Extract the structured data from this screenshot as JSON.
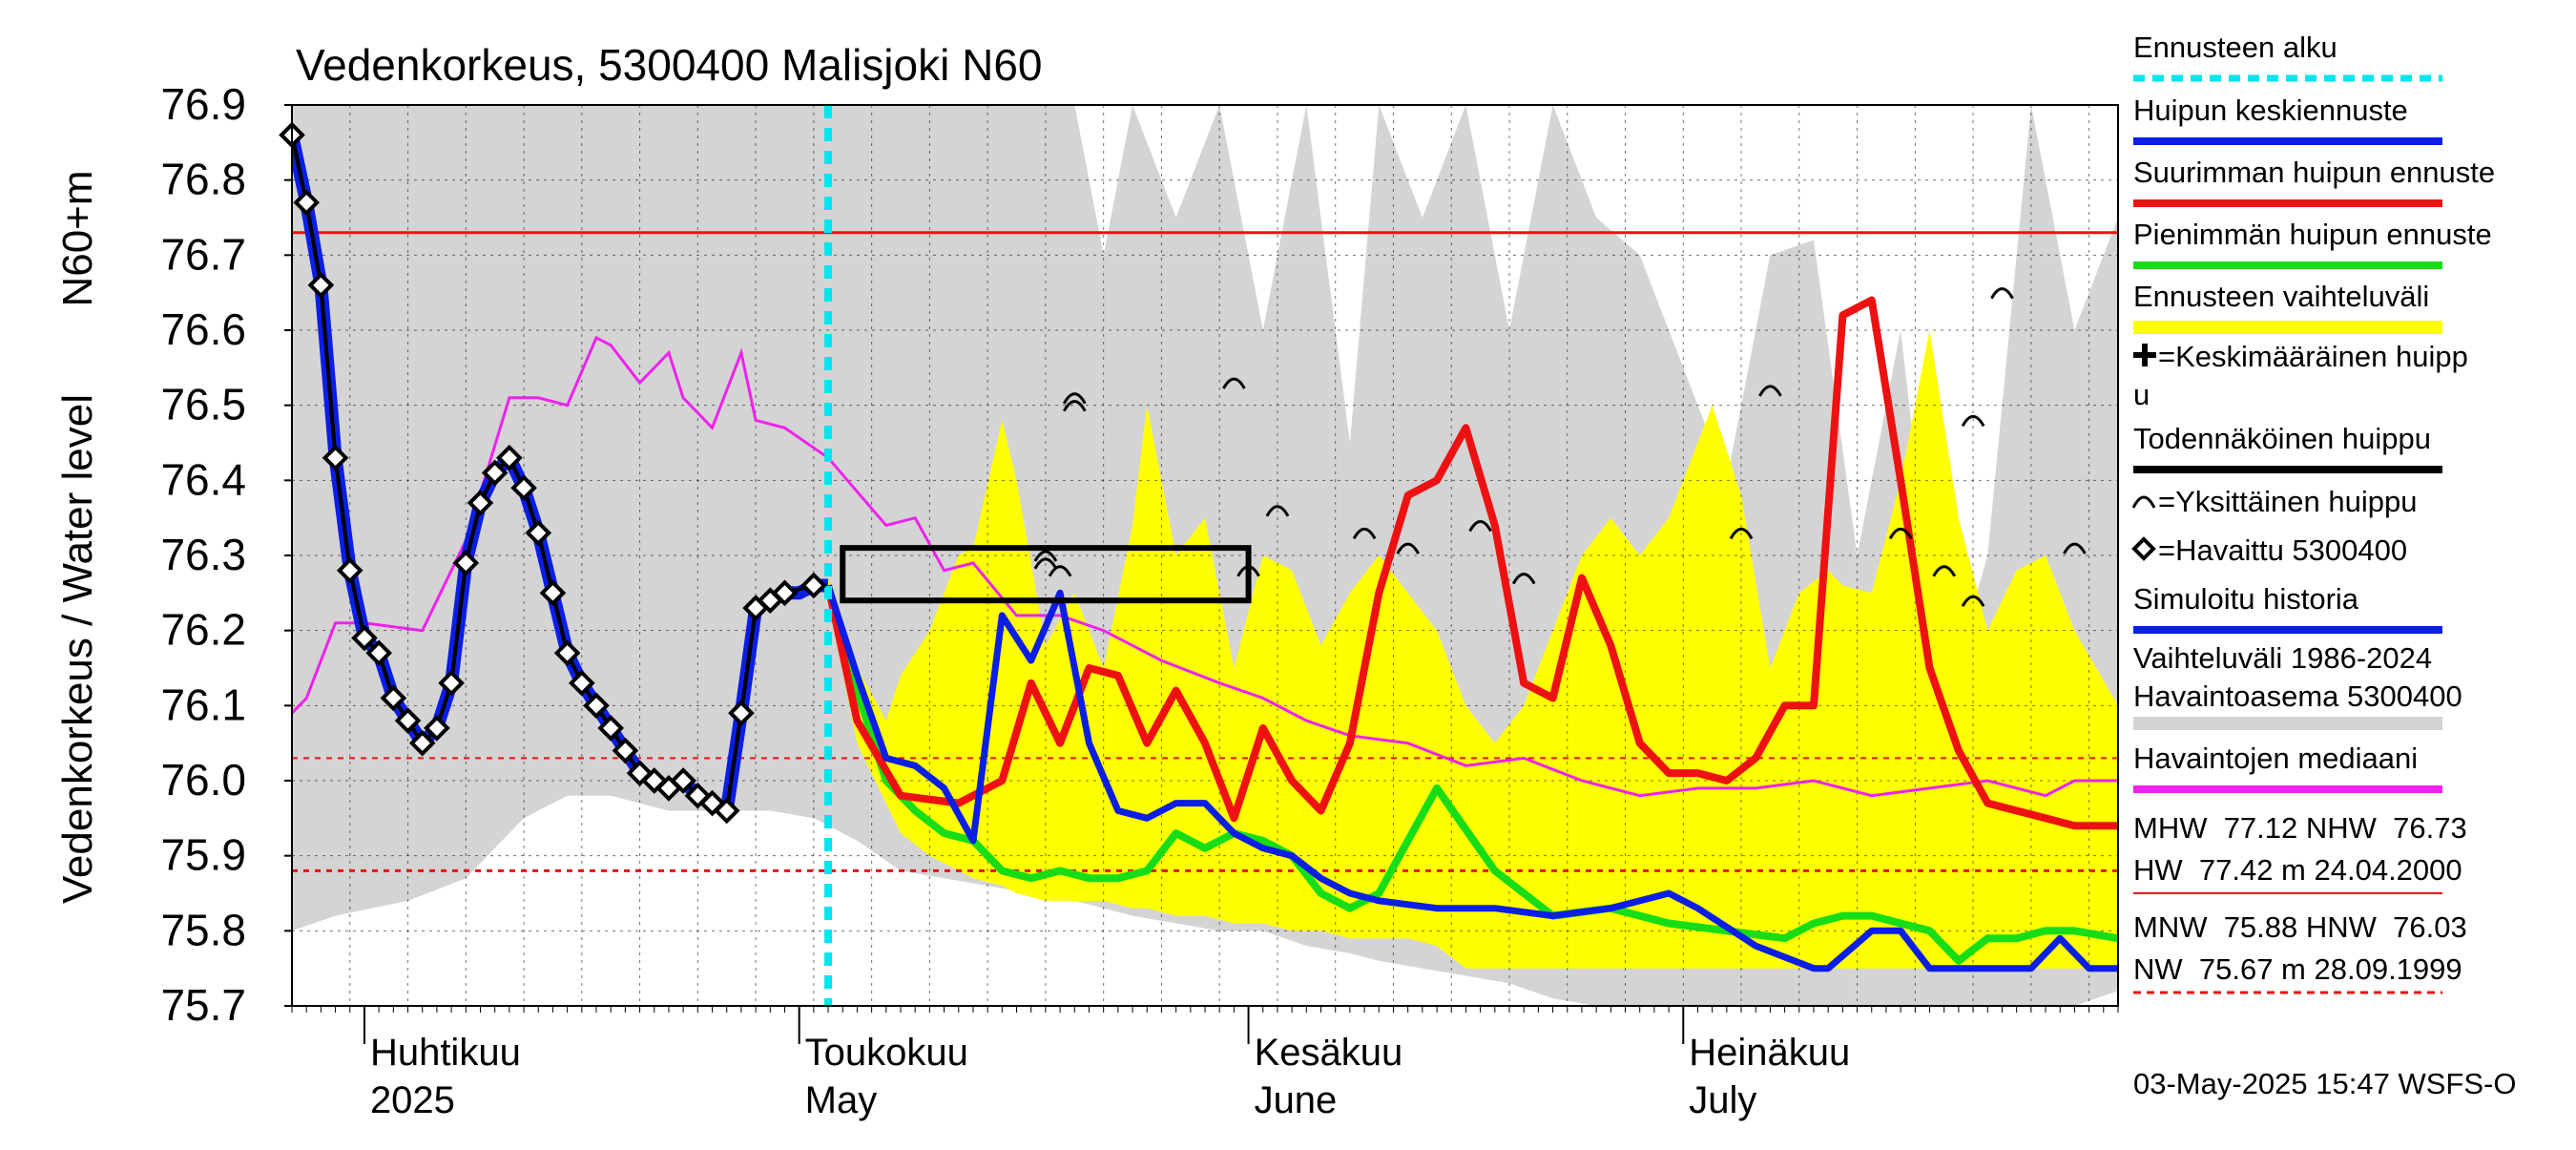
{
  "chart_data": {
    "type": "line",
    "title": "Vedenkorkeus, 5300400 Malisjoki N60",
    "ylabel": "Vedenkorkeus / Water level",
    "ylabel_unit": "N60+m",
    "ylim": [
      75.7,
      76.9
    ],
    "yticks": [
      "75.7",
      "75.8",
      "75.9",
      "76.0",
      "76.1",
      "76.2",
      "76.3",
      "76.4",
      "76.5",
      "76.6",
      "76.7",
      "76.8",
      "76.9"
    ],
    "xlim": [
      "2025-03-27",
      "2025-07-31"
    ],
    "grid": true,
    "months": [
      {
        "label": "Huhtikuu",
        "label2": "2025",
        "start": "2025-04-01"
      },
      {
        "label": "Toukokuu",
        "label2": "May",
        "start": "2025-05-01"
      },
      {
        "label": "Kesäkuu",
        "label2": "June",
        "start": "2025-06-01"
      },
      {
        "label": "Heinäkuu",
        "label2": "July",
        "start": "2025-07-01"
      }
    ],
    "forecast_start": "2025-05-03",
    "reference_lines": {
      "NHW": 76.73,
      "HNW": 76.03,
      "MNW": 75.88
    },
    "observed": {
      "name": "Havaittu 5300400",
      "x": [
        "2025-03-27",
        "2025-03-28",
        "2025-03-29",
        "2025-03-30",
        "2025-03-31",
        "2025-04-01",
        "2025-04-02",
        "2025-04-03",
        "2025-04-04",
        "2025-04-05",
        "2025-04-06",
        "2025-04-07",
        "2025-04-08",
        "2025-04-09",
        "2025-04-10",
        "2025-04-11",
        "2025-04-12",
        "2025-04-13",
        "2025-04-14",
        "2025-04-15",
        "2025-04-16",
        "2025-04-17",
        "2025-04-18",
        "2025-04-19",
        "2025-04-20",
        "2025-04-21",
        "2025-04-22",
        "2025-04-23",
        "2025-04-24",
        "2025-04-25",
        "2025-04-26",
        "2025-04-27",
        "2025-04-28",
        "2025-04-29",
        "2025-04-30",
        "2025-05-02"
      ],
      "y": [
        76.86,
        76.77,
        76.66,
        76.43,
        76.28,
        76.19,
        76.17,
        76.11,
        76.08,
        76.05,
        76.07,
        76.13,
        76.29,
        76.37,
        76.41,
        76.43,
        76.39,
        76.33,
        76.25,
        76.17,
        76.13,
        76.1,
        76.07,
        76.04,
        76.01,
        76.0,
        75.99,
        76.0,
        75.98,
        75.97,
        75.96,
        76.09,
        76.23,
        76.24,
        76.25,
        76.26
      ]
    },
    "simulated": {
      "name": "Simuloitu historia",
      "x": [
        "2025-03-27",
        "2025-03-28",
        "2025-03-29",
        "2025-03-30",
        "2025-03-31",
        "2025-04-01",
        "2025-04-02",
        "2025-04-03",
        "2025-04-04",
        "2025-04-05",
        "2025-04-06",
        "2025-04-07",
        "2025-04-08",
        "2025-04-09",
        "2025-04-10",
        "2025-04-11",
        "2025-04-12",
        "2025-04-13",
        "2025-04-14",
        "2025-04-15",
        "2025-04-16",
        "2025-04-17",
        "2025-04-18",
        "2025-04-19",
        "2025-04-20",
        "2025-04-21",
        "2025-04-22",
        "2025-04-23",
        "2025-04-24",
        "2025-04-25",
        "2025-04-26",
        "2025-04-27",
        "2025-04-28",
        "2025-04-29",
        "2025-04-30",
        "2025-05-01",
        "2025-05-02",
        "2025-05-03"
      ],
      "y": [
        76.86,
        76.77,
        76.66,
        76.43,
        76.28,
        76.19,
        76.17,
        76.11,
        76.08,
        76.05,
        76.07,
        76.13,
        76.29,
        76.37,
        76.41,
        76.43,
        76.39,
        76.33,
        76.25,
        76.17,
        76.13,
        76.1,
        76.07,
        76.04,
        76.01,
        76.0,
        75.99,
        76.0,
        75.98,
        75.97,
        75.96,
        76.09,
        76.23,
        76.24,
        76.25,
        76.25,
        76.26,
        76.26
      ]
    },
    "median": {
      "name": "Havaintojen mediaani",
      "x": [
        "2025-03-27",
        "2025-03-28",
        "2025-03-30",
        "2025-04-01",
        "2025-04-05",
        "2025-04-08",
        "2025-04-11",
        "2025-04-13",
        "2025-04-15",
        "2025-04-17",
        "2025-04-18",
        "2025-04-20",
        "2025-04-22",
        "2025-04-23",
        "2025-04-25",
        "2025-04-27",
        "2025-04-28",
        "2025-04-30",
        "2025-05-03",
        "2025-05-07",
        "2025-05-09",
        "2025-05-11",
        "2025-05-13",
        "2025-05-16",
        "2025-05-19",
        "2025-05-22",
        "2025-05-26",
        "2025-05-30",
        "2025-06-02",
        "2025-06-05",
        "2025-06-08",
        "2025-06-12",
        "2025-06-16",
        "2025-06-20",
        "2025-06-24",
        "2025-06-28",
        "2025-07-02",
        "2025-07-06",
        "2025-07-10",
        "2025-07-14",
        "2025-07-18",
        "2025-07-22",
        "2025-07-26",
        "2025-07-28",
        "2025-07-31"
      ],
      "y": [
        76.09,
        76.11,
        76.21,
        76.21,
        76.2,
        76.32,
        76.51,
        76.51,
        76.5,
        76.59,
        76.58,
        76.53,
        76.57,
        76.51,
        76.47,
        76.57,
        76.48,
        76.47,
        76.43,
        76.34,
        76.35,
        76.28,
        76.29,
        76.22,
        76.22,
        76.2,
        76.16,
        76.13,
        76.11,
        76.08,
        76.06,
        76.05,
        76.02,
        76.03,
        76.0,
        75.98,
        75.99,
        75.99,
        76.0,
        75.98,
        75.99,
        76.0,
        75.98,
        76.0,
        76.0
      ]
    },
    "forecast_mean": {
      "name": "Huipun keskiennuste",
      "x": [
        "2025-05-03",
        "2025-05-05",
        "2025-05-07",
        "2025-05-09",
        "2025-05-11",
        "2025-05-13",
        "2025-05-15",
        "2025-05-17",
        "2025-05-19",
        "2025-05-21",
        "2025-05-23",
        "2025-05-25",
        "2025-05-27",
        "2025-05-29",
        "2025-05-31",
        "2025-06-02",
        "2025-06-04",
        "2025-06-06",
        "2025-06-08",
        "2025-06-10",
        "2025-06-14",
        "2025-06-18",
        "2025-06-22",
        "2025-06-26",
        "2025-06-30",
        "2025-07-02",
        "2025-07-06",
        "2025-07-10",
        "2025-07-11",
        "2025-07-14",
        "2025-07-16",
        "2025-07-18",
        "2025-07-20",
        "2025-07-22",
        "2025-07-25",
        "2025-07-27",
        "2025-07-29",
        "2025-07-31"
      ],
      "y": [
        76.26,
        76.14,
        76.03,
        76.02,
        75.99,
        75.92,
        76.22,
        76.16,
        76.25,
        76.05,
        75.96,
        75.95,
        75.97,
        75.97,
        75.93,
        75.91,
        75.9,
        75.87,
        75.85,
        75.84,
        75.83,
        75.83,
        75.82,
        75.83,
        75.85,
        75.83,
        75.78,
        75.75,
        75.75,
        75.8,
        75.8,
        75.75,
        75.75,
        75.75,
        75.75,
        75.79,
        75.75,
        75.75
      ]
    },
    "forecast_max": {
      "name": "Suurimman huipun ennuste",
      "x": [
        "2025-05-03",
        "2025-05-05",
        "2025-05-08",
        "2025-05-12",
        "2025-05-15",
        "2025-05-17",
        "2025-05-19",
        "2025-05-21",
        "2025-05-23",
        "2025-05-25",
        "2025-05-27",
        "2025-05-29",
        "2025-05-31",
        "2025-06-02",
        "2025-06-04",
        "2025-06-06",
        "2025-06-08",
        "2025-06-10",
        "2025-06-12",
        "2025-06-14",
        "2025-06-16",
        "2025-06-18",
        "2025-06-20",
        "2025-06-22",
        "2025-06-24",
        "2025-06-26",
        "2025-06-28",
        "2025-06-30",
        "2025-07-02",
        "2025-07-04",
        "2025-07-06",
        "2025-07-08",
        "2025-07-10",
        "2025-07-12",
        "2025-07-14",
        "2025-07-16",
        "2025-07-18",
        "2025-07-20",
        "2025-07-22",
        "2025-07-24",
        "2025-07-26",
        "2025-07-28",
        "2025-07-31"
      ],
      "y": [
        76.26,
        76.08,
        75.98,
        75.97,
        76.0,
        76.13,
        76.05,
        76.15,
        76.14,
        76.05,
        76.12,
        76.05,
        75.95,
        76.07,
        76.0,
        75.96,
        76.05,
        76.25,
        76.38,
        76.4,
        76.47,
        76.34,
        76.13,
        76.11,
        76.27,
        76.18,
        76.05,
        76.01,
        76.01,
        76.0,
        76.03,
        76.1,
        76.1,
        76.62,
        76.64,
        76.4,
        76.15,
        76.04,
        75.97,
        75.96,
        75.95,
        75.94,
        75.94
      ]
    },
    "forecast_min": {
      "name": "Pienimmän huipun ennuste",
      "x": [
        "2025-05-03",
        "2025-05-05",
        "2025-05-07",
        "2025-05-09",
        "2025-05-11",
        "2025-05-13",
        "2025-05-15",
        "2025-05-17",
        "2025-05-19",
        "2025-05-21",
        "2025-05-23",
        "2025-05-25",
        "2025-05-27",
        "2025-05-29",
        "2025-05-31",
        "2025-06-02",
        "2025-06-04",
        "2025-06-06",
        "2025-06-08",
        "2025-06-10",
        "2025-06-14",
        "2025-06-18",
        "2025-06-22",
        "2025-06-26",
        "2025-06-30",
        "2025-07-04",
        "2025-07-08",
        "2025-07-10",
        "2025-07-12",
        "2025-07-14",
        "2025-07-16",
        "2025-07-18",
        "2025-07-20",
        "2025-07-22",
        "2025-07-24",
        "2025-07-26",
        "2025-07-28",
        "2025-07-31"
      ],
      "y": [
        76.26,
        76.12,
        76.0,
        75.96,
        75.93,
        75.92,
        75.88,
        75.87,
        75.88,
        75.87,
        75.87,
        75.88,
        75.93,
        75.91,
        75.93,
        75.92,
        75.9,
        75.85,
        75.83,
        75.85,
        75.99,
        75.88,
        75.82,
        75.83,
        75.81,
        75.8,
        75.79,
        75.81,
        75.82,
        75.82,
        75.81,
        75.8,
        75.76,
        75.79,
        75.79,
        75.8,
        75.8,
        75.79
      ]
    },
    "forecast_range": {
      "name": "Ennusteen vaihteluväli",
      "x": [
        "2025-05-03",
        "2025-05-05",
        "2025-05-07",
        "2025-05-08",
        "2025-05-10",
        "2025-05-12",
        "2025-05-13",
        "2025-05-15",
        "2025-05-16",
        "2025-05-18",
        "2025-05-20",
        "2025-05-22",
        "2025-05-24",
        "2025-05-25",
        "2025-05-27",
        "2025-05-29",
        "2025-05-31",
        "2025-06-02",
        "2025-06-04",
        "2025-06-06",
        "2025-06-08",
        "2025-06-10",
        "2025-06-12",
        "2025-06-14",
        "2025-06-16",
        "2025-06-18",
        "2025-06-20",
        "2025-06-22",
        "2025-06-24",
        "2025-06-26",
        "2025-06-28",
        "2025-06-30",
        "2025-07-02",
        "2025-07-03",
        "2025-07-05",
        "2025-07-07",
        "2025-07-09",
        "2025-07-11",
        "2025-07-12",
        "2025-07-14",
        "2025-07-16",
        "2025-07-18",
        "2025-07-20",
        "2025-07-22",
        "2025-07-24",
        "2025-07-26",
        "2025-07-28",
        "2025-07-31"
      ],
      "upper": [
        76.27,
        76.15,
        76.08,
        76.14,
        76.2,
        76.3,
        76.31,
        76.48,
        76.4,
        76.18,
        76.25,
        76.15,
        76.34,
        76.5,
        76.3,
        76.35,
        76.15,
        76.3,
        76.28,
        76.18,
        76.25,
        76.3,
        76.25,
        76.2,
        76.1,
        76.05,
        76.1,
        76.2,
        76.3,
        76.35,
        76.3,
        76.35,
        76.45,
        76.5,
        76.38,
        76.15,
        76.25,
        76.28,
        76.26,
        76.25,
        76.4,
        76.6,
        76.35,
        76.2,
        76.28,
        76.3,
        76.2,
        76.1
      ],
      "lower": [
        76.24,
        76.05,
        75.97,
        75.93,
        75.9,
        75.88,
        75.87,
        75.86,
        75.85,
        75.84,
        75.84,
        75.84,
        75.83,
        75.83,
        75.82,
        75.82,
        75.81,
        75.81,
        75.8,
        75.8,
        75.79,
        75.79,
        75.79,
        75.78,
        75.75,
        75.75,
        75.75,
        75.75,
        75.75,
        75.75,
        75.75,
        75.75,
        75.75,
        75.75,
        75.75,
        75.75,
        75.75,
        75.75,
        75.75,
        75.75,
        75.75,
        75.75,
        75.75,
        75.75,
        75.75,
        75.75,
        75.75,
        75.75
      ]
    },
    "historical_range": {
      "name": "Vaihteluväli 1986-2024 Havaintoasema 5300400",
      "x": [
        "2025-03-27",
        "2025-03-30",
        "2025-04-04",
        "2025-04-08",
        "2025-04-12",
        "2025-04-15",
        "2025-04-18",
        "2025-04-22",
        "2025-04-26",
        "2025-04-29",
        "2025-05-02",
        "2025-05-05",
        "2025-05-08",
        "2025-05-11",
        "2025-05-14",
        "2025-05-17",
        "2025-05-20",
        "2025-05-22",
        "2025-05-24",
        "2025-05-27",
        "2025-05-30",
        "2025-06-02",
        "2025-06-05",
        "2025-06-08",
        "2025-06-10",
        "2025-06-13",
        "2025-06-16",
        "2025-06-19",
        "2025-06-22",
        "2025-06-25",
        "2025-06-28",
        "2025-07-01",
        "2025-07-04",
        "2025-07-07",
        "2025-07-10",
        "2025-07-13",
        "2025-07-16",
        "2025-07-19",
        "2025-07-22",
        "2025-07-25",
        "2025-07-28",
        "2025-07-31"
      ],
      "upper": [
        76.9,
        76.9,
        76.9,
        76.9,
        76.9,
        76.9,
        76.9,
        76.9,
        76.9,
        76.9,
        76.9,
        76.9,
        76.9,
        76.9,
        76.9,
        76.9,
        76.9,
        76.7,
        76.9,
        76.75,
        76.9,
        76.6,
        76.9,
        76.45,
        76.9,
        76.75,
        76.9,
        76.6,
        76.9,
        76.75,
        76.7,
        76.55,
        76.4,
        76.7,
        76.72,
        76.3,
        76.6,
        76.1,
        76.3,
        76.9,
        76.6,
        76.75
      ],
      "lower": [
        75.8,
        75.82,
        75.84,
        75.87,
        75.95,
        75.98,
        75.98,
        75.96,
        75.96,
        75.96,
        75.95,
        75.92,
        75.88,
        75.87,
        75.86,
        75.85,
        75.84,
        75.83,
        75.82,
        75.81,
        75.8,
        75.8,
        75.78,
        75.77,
        75.76,
        75.75,
        75.74,
        75.73,
        75.71,
        75.7,
        75.7,
        75.7,
        75.7,
        75.7,
        75.7,
        75.7,
        75.7,
        75.7,
        75.7,
        75.7,
        75.7,
        75.72
      ]
    },
    "probable_peak_box": {
      "x": [
        "2025-05-04",
        "2025-06-01"
      ],
      "y": [
        76.24,
        76.31
      ]
    },
    "individual_peaks": [
      {
        "x": "2025-05-18",
        "y": 76.3
      },
      {
        "x": "2025-05-18",
        "y": 76.29
      },
      {
        "x": "2025-05-19",
        "y": 76.28
      },
      {
        "x": "2025-05-20",
        "y": 76.51
      },
      {
        "x": "2025-05-20",
        "y": 76.5
      },
      {
        "x": "2025-05-31",
        "y": 76.53
      },
      {
        "x": "2025-06-01",
        "y": 76.28
      },
      {
        "x": "2025-06-03",
        "y": 76.36
      },
      {
        "x": "2025-06-09",
        "y": 76.33
      },
      {
        "x": "2025-06-12",
        "y": 76.31
      },
      {
        "x": "2025-06-17",
        "y": 76.34
      },
      {
        "x": "2025-06-20",
        "y": 76.27
      },
      {
        "x": "2025-07-05",
        "y": 76.33
      },
      {
        "x": "2025-07-07",
        "y": 76.52
      },
      {
        "x": "2025-07-16",
        "y": 76.33
      },
      {
        "x": "2025-07-19",
        "y": 76.28
      },
      {
        "x": "2025-07-21",
        "y": 76.24
      },
      {
        "x": "2025-07-21",
        "y": 76.48
      },
      {
        "x": "2025-07-23",
        "y": 76.65
      },
      {
        "x": "2025-07-28",
        "y": 76.31
      }
    ],
    "legend": {
      "placement": "right",
      "items": [
        {
          "label": "Ennusteen alku",
          "style": "dashed",
          "color": "#00e5ee"
        },
        {
          "label": "Huipun keskiennuste",
          "style": "line",
          "color": "#0a1ee6"
        },
        {
          "label": "Suurimman huipun ennuste",
          "style": "line",
          "color": "#ee1111"
        },
        {
          "label": "Pienimmän huipun ennuste",
          "style": "line",
          "color": "#16dd16"
        },
        {
          "label": "Ennusteen vaihteluväli",
          "style": "band",
          "color": "#ffff00"
        },
        {
          "label": "=Keskimääräinen huipp",
          "label2": "u",
          "style": "marker-plus",
          "color": "#000000"
        },
        {
          "label": "Todennäköinen huippu",
          "style": "line",
          "color": "#000000"
        },
        {
          "label": "=Yksittäinen huippu",
          "style": "marker-arc",
          "color": "#000000"
        },
        {
          "label": "=Havaittu 5300400",
          "style": "marker-diamond",
          "color": "#000000"
        },
        {
          "label": "Simuloitu historia",
          "style": "line",
          "color": "#0a1ee6"
        },
        {
          "label": "Vaihteluväli 1986-2024",
          "label2": " Havaintoasema 5300400",
          "style": "band",
          "color": "#d4d4d4"
        },
        {
          "label": "Havaintojen mediaani",
          "style": "line",
          "color": "#ee22ee"
        }
      ]
    },
    "stats": {
      "line1": "MHW  77.12 NHW  76.73",
      "line2": "HW  77.42 m 24.04.2000",
      "line3": "MNW  75.88 HNW  76.03",
      "line4": "NW  75.67 m 28.09.1999"
    },
    "timestamp": "03-May-2025 15:47 WSFS-O",
    "colors": {
      "observed": "#000000",
      "simulated": "#0a1ee6",
      "mean": "#0a1ee6",
      "max": "#ee1111",
      "min": "#16dd16",
      "median": "#ee22ee",
      "forecast_band": "#ffff00",
      "history_band": "#d4d4d4",
      "forecast_start": "#00e5ee",
      "reference_high": "#ee1111",
      "reference_low": "#ee1111"
    }
  }
}
